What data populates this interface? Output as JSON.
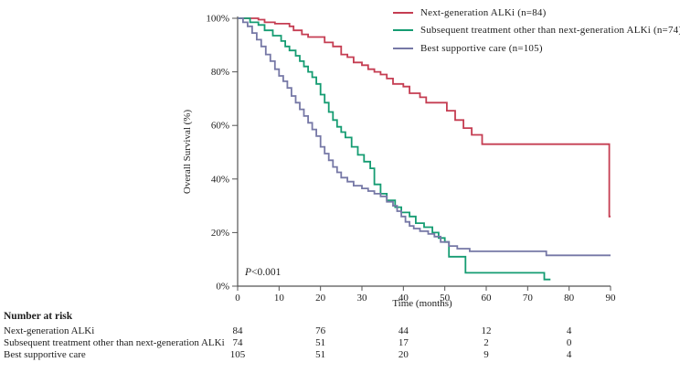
{
  "figure": {
    "background": "#ffffff",
    "text_color": "#1d1d1d",
    "axis_color": "#555555"
  },
  "legend": {
    "items": [
      {
        "label": "Next-generation  ALKi  (n=84)",
        "color": "#c53d52",
        "series_id": "next_gen_alki"
      },
      {
        "label": "Subsequent  treatment  other  than  next-generation  ALKi  (n=74)",
        "color": "#159c72",
        "series_id": "subsequent_other"
      },
      {
        "label": "Best  supportive  care (n=105)",
        "color": "#7678a6",
        "series_id": "best_supportive"
      }
    ]
  },
  "chart_data": {
    "type": "line",
    "subtype": "kaplan_meier_step",
    "title": "",
    "xlabel": "Time (months)",
    "ylabel": "Overall Survival (%)",
    "xlim": [
      0,
      90
    ],
    "ylim": [
      0,
      100
    ],
    "grid": false,
    "legend_position": "top-right",
    "annotation": {
      "p_italic": "P",
      "p_rest": "<0.001",
      "full": "P<0.001"
    },
    "x_ticks": [
      0,
      10,
      20,
      30,
      40,
      50,
      60,
      70,
      80,
      90
    ],
    "y_ticks": [
      {
        "value": 0,
        "label": "0%"
      },
      {
        "value": 20,
        "label": "20%"
      },
      {
        "value": 40,
        "label": "40%"
      },
      {
        "value": 60,
        "label": "60%"
      },
      {
        "value": 80,
        "label": "80%"
      },
      {
        "value": 100,
        "label": "100%"
      }
    ],
    "series": [
      {
        "id": "next_gen_alki",
        "name": "Next-generation ALKi (n=84)",
        "color": "#c53d52",
        "points": [
          [
            0,
            100
          ],
          [
            5,
            99.5
          ],
          [
            6.5,
            98.5
          ],
          [
            9,
            98
          ],
          [
            12.5,
            97
          ],
          [
            13.5,
            95.5
          ],
          [
            15.5,
            94
          ],
          [
            17,
            93
          ],
          [
            21,
            91
          ],
          [
            23,
            89.5
          ],
          [
            25,
            86.5
          ],
          [
            26.5,
            85.5
          ],
          [
            28,
            83.5
          ],
          [
            30,
            82.5
          ],
          [
            31.5,
            81
          ],
          [
            33,
            80
          ],
          [
            34.5,
            79
          ],
          [
            36,
            77.5
          ],
          [
            37.5,
            75.5
          ],
          [
            40,
            74.5
          ],
          [
            41.5,
            72
          ],
          [
            44,
            70.5
          ],
          [
            45.5,
            68.5
          ],
          [
            50.5,
            65.5
          ],
          [
            52.5,
            62
          ],
          [
            54.5,
            59
          ],
          [
            56.5,
            56.5
          ],
          [
            59,
            53
          ],
          [
            89.7,
            53
          ],
          [
            89.7,
            26
          ],
          [
            90,
            26
          ]
        ]
      },
      {
        "id": "subsequent_other",
        "name": "Subsequent treatment other than next-generation ALKi (n=74)",
        "color": "#159c72",
        "points": [
          [
            0,
            100
          ],
          [
            3,
            98.5
          ],
          [
            5,
            97.5
          ],
          [
            6.5,
            95.5
          ],
          [
            8.5,
            93.5
          ],
          [
            10.5,
            91.5
          ],
          [
            11.5,
            89.5
          ],
          [
            12.5,
            88
          ],
          [
            14,
            86
          ],
          [
            15,
            84
          ],
          [
            16,
            82
          ],
          [
            17,
            80
          ],
          [
            18,
            78
          ],
          [
            19,
            75.5
          ],
          [
            20,
            71.5
          ],
          [
            21,
            68.5
          ],
          [
            22,
            65
          ],
          [
            23,
            62
          ],
          [
            24,
            59.5
          ],
          [
            25,
            57.5
          ],
          [
            26,
            55.5
          ],
          [
            27.5,
            52
          ],
          [
            29,
            49
          ],
          [
            30.5,
            46.5
          ],
          [
            32,
            44
          ],
          [
            33,
            38
          ],
          [
            34.5,
            34.5
          ],
          [
            36,
            32
          ],
          [
            38,
            29.5
          ],
          [
            39.5,
            27.5
          ],
          [
            41.5,
            26
          ],
          [
            43,
            23.5
          ],
          [
            45,
            22
          ],
          [
            47,
            20
          ],
          [
            48.5,
            18
          ],
          [
            50,
            16.5
          ],
          [
            51,
            11
          ],
          [
            55,
            5
          ],
          [
            74,
            2.5
          ],
          [
            75.5,
            2.5
          ]
        ]
      },
      {
        "id": "best_supportive",
        "name": "Best supportive care (n=105)",
        "color": "#7678a6",
        "points": [
          [
            0,
            100
          ],
          [
            1.3,
            98.5
          ],
          [
            2.4,
            97
          ],
          [
            3.5,
            94.5
          ],
          [
            4.6,
            92
          ],
          [
            5.7,
            89.5
          ],
          [
            6.8,
            86.5
          ],
          [
            7.9,
            84
          ],
          [
            9,
            81
          ],
          [
            10,
            78.5
          ],
          [
            11,
            76.5
          ],
          [
            12,
            74
          ],
          [
            13,
            71
          ],
          [
            14,
            68.5
          ],
          [
            15,
            66
          ],
          [
            16,
            63.5
          ],
          [
            17,
            61
          ],
          [
            18,
            58.5
          ],
          [
            19,
            56
          ],
          [
            20,
            52
          ],
          [
            21,
            49.5
          ],
          [
            22,
            47
          ],
          [
            23,
            44.5
          ],
          [
            24,
            42.5
          ],
          [
            25,
            40.5
          ],
          [
            26.5,
            39
          ],
          [
            28,
            37.5
          ],
          [
            30,
            36.5
          ],
          [
            31.5,
            35.5
          ],
          [
            33,
            34.5
          ],
          [
            34.5,
            33.5
          ],
          [
            36,
            31.5
          ],
          [
            37.5,
            30
          ],
          [
            38.5,
            28
          ],
          [
            39.5,
            26
          ],
          [
            40.5,
            24
          ],
          [
            41.5,
            22.5
          ],
          [
            42.5,
            21.5
          ],
          [
            44,
            20.5
          ],
          [
            46,
            19.5
          ],
          [
            47.5,
            18.5
          ],
          [
            49,
            16.5
          ],
          [
            51,
            15
          ],
          [
            53,
            14
          ],
          [
            56,
            13
          ],
          [
            74.5,
            11.5
          ],
          [
            90,
            11.5
          ]
        ]
      }
    ]
  },
  "at_risk": {
    "header": "Number at risk",
    "time_points": [
      0,
      20,
      40,
      60,
      80
    ],
    "rows": [
      {
        "label": "Next-generation ALKi",
        "values": [
          "84",
          "76",
          "44",
          "12",
          "4"
        ]
      },
      {
        "label": "Subsequent treatment other than next-generation ALKi",
        "values": [
          "74",
          "51",
          "17",
          "2",
          "0"
        ]
      },
      {
        "label": "Best supportive care",
        "values": [
          "105",
          "51",
          "20",
          "9",
          "4"
        ]
      }
    ]
  }
}
